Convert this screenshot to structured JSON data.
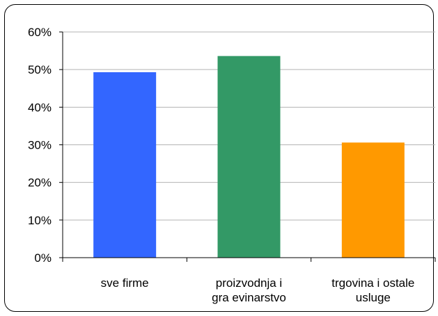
{
  "chart_data": {
    "type": "bar",
    "categories": [
      [
        "sve firme"
      ],
      [
        "proizvodnja i",
        "gra evinarstvo"
      ],
      [
        "trgovina i ostale",
        "usluge"
      ]
    ],
    "values": [
      0.493,
      0.536,
      0.306
    ],
    "colors": [
      "#3366FF",
      "#339966",
      "#FF9900"
    ],
    "title": "",
    "xlabel": "",
    "ylabel": "",
    "ylim": [
      0,
      0.6
    ],
    "yticks": [
      0,
      0.1,
      0.2,
      0.3,
      0.4,
      0.5,
      0.6
    ],
    "ytick_labels": [
      "0%",
      "10%",
      "20%",
      "30%",
      "40%",
      "50%",
      "60%"
    ],
    "grid": true,
    "legend": "none"
  }
}
